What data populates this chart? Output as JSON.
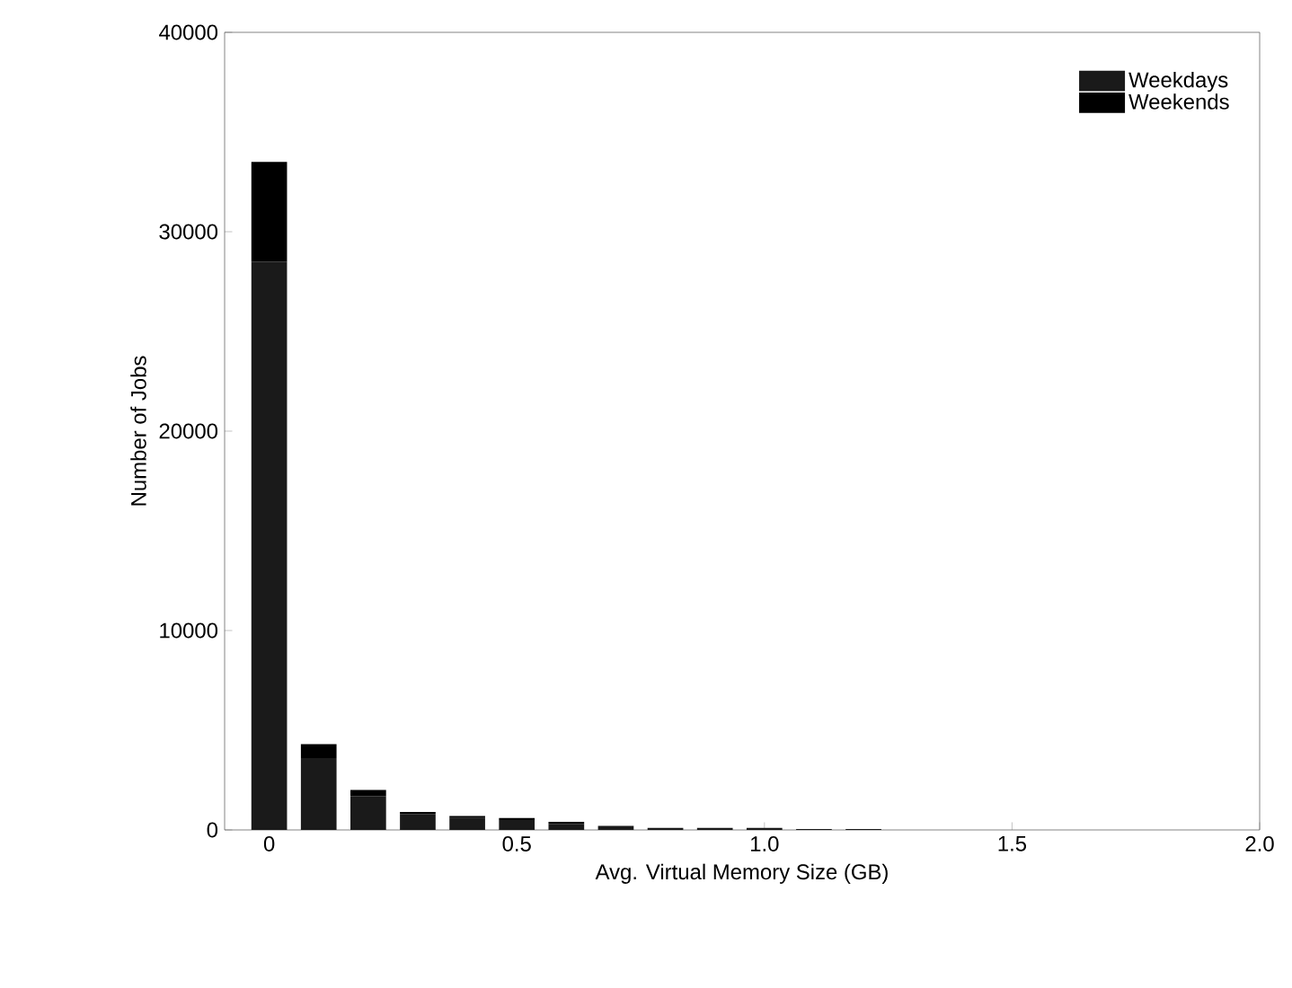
{
  "chart_data": {
    "type": "bar",
    "stacked": true,
    "xlabel": "Avg. Virtual Memory Size (GB)",
    "ylabel": "Number of Jobs",
    "x": [
      0,
      0.1,
      0.2,
      0.3,
      0.4,
      0.5,
      0.6,
      0.7,
      0.8,
      0.9,
      1.0,
      1.1,
      1.2
    ],
    "series": [
      {
        "name": "Weekdays",
        "color": "#1a1a1a",
        "values": [
          28500,
          3600,
          1700,
          800,
          600,
          500,
          300,
          200,
          100,
          100,
          100,
          50,
          50
        ]
      },
      {
        "name": "Weekends",
        "color": "#000000",
        "values": [
          5000,
          700,
          300,
          100,
          100,
          100,
          100,
          null,
          null,
          null,
          null,
          null,
          null
        ]
      }
    ],
    "xlim": [
      -0.09,
      2.0
    ],
    "ylim": [
      0,
      40000
    ],
    "xticks": [
      0,
      {
        "value": 0.5,
        "label": "0.5"
      },
      {
        "value": 1.0,
        "label": "1.0"
      },
      {
        "value": 1.5,
        "label": "1.5"
      },
      {
        "value": 2.0,
        "label": "2.0"
      }
    ],
    "yticks": [
      0,
      10000,
      20000,
      30000,
      40000
    ],
    "legend": "top right"
  }
}
